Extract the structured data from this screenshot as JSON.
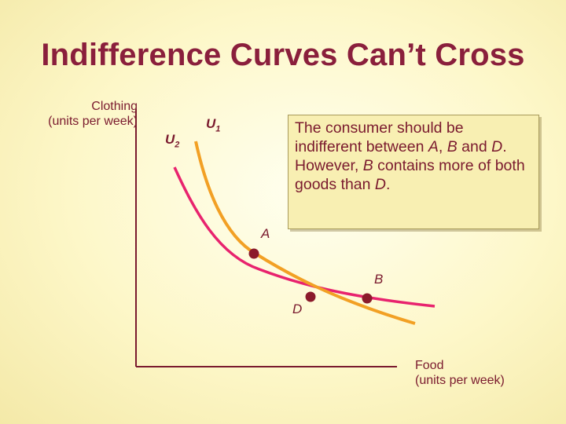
{
  "title": "Indifference Curves Can’t Cross",
  "axes": {
    "y_label_line1": "Clothing",
    "y_label_line2": "(units per week)",
    "x_label_line1": "Food",
    "x_label_line2": "(units per week)"
  },
  "curves": [
    {
      "name": "U",
      "subscript": "1",
      "color": "#f2a024"
    },
    {
      "name": "U",
      "subscript": "2",
      "color": "#e8236e"
    }
  ],
  "points": [
    {
      "label": "A",
      "color": "#8b1a2b"
    },
    {
      "label": "B",
      "color": "#8b1a2b"
    },
    {
      "label": "D",
      "color": "#8b1a2b"
    }
  ],
  "callout": {
    "text_parts": [
      "The consumer should be indifferent between ",
      "A",
      ", ",
      "B",
      " and ",
      "D",
      ".  However, ",
      "B",
      " contains more of both goods than ",
      "D",
      "."
    ]
  },
  "colors": {
    "title": "#8a1f3c",
    "axis": "#7a1a2e",
    "u1_curve": "#f2a024",
    "u2_curve": "#e8236e"
  }
}
